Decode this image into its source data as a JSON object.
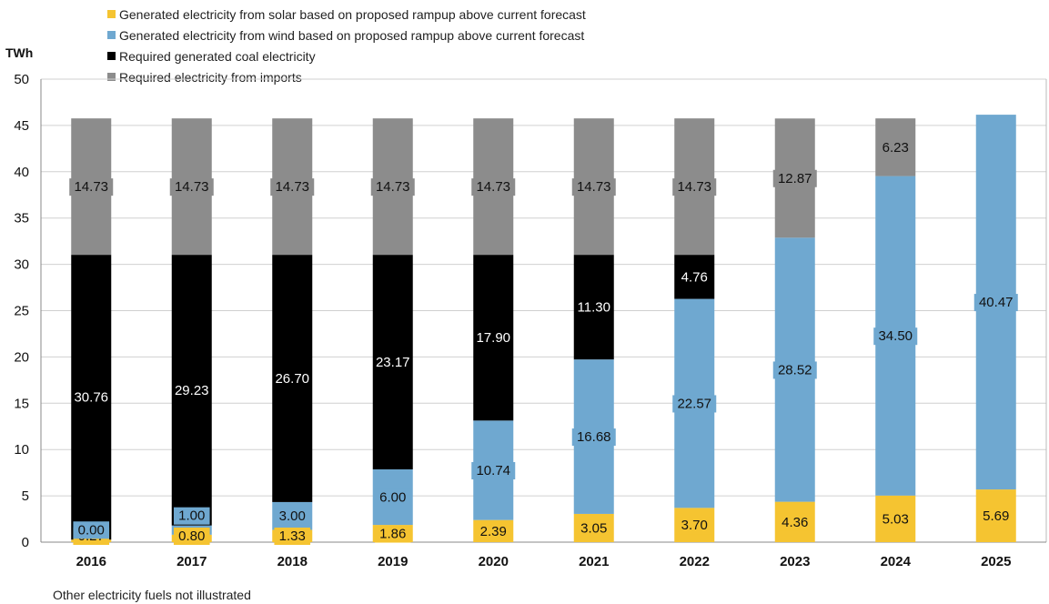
{
  "chart_data": {
    "type": "bar",
    "stacked": true,
    "title": "",
    "ylabel": "TWh",
    "xlabel": "",
    "ylim": [
      0,
      50
    ],
    "yticks": [
      0,
      5,
      10,
      15,
      20,
      25,
      30,
      35,
      40,
      45,
      50
    ],
    "grid": "horizontal",
    "legend_position": "top",
    "categories": [
      "2016",
      "2017",
      "2018",
      "2019",
      "2020",
      "2021",
      "2022",
      "2023",
      "2024",
      "2025"
    ],
    "series": [
      {
        "name": "Generated electricity from solar based on proposed rampup above current forecast",
        "color": "#f5c431",
        "values": [
          0.27,
          0.8,
          1.33,
          1.86,
          2.39,
          3.05,
          3.7,
          4.36,
          5.03,
          5.69
        ]
      },
      {
        "name": "Generated electricity from wind based on proposed rampup above current forecast",
        "color": "#6fa8d0",
        "values": [
          0.0,
          1.0,
          3.0,
          6.0,
          10.74,
          16.68,
          22.57,
          28.52,
          34.5,
          40.47
        ]
      },
      {
        "name": "Required generated coal electricity",
        "color": "#000000",
        "values": [
          30.76,
          29.23,
          26.7,
          23.17,
          17.9,
          11.3,
          4.76,
          0,
          0,
          0
        ]
      },
      {
        "name": "Required electricity from imports",
        "color": "#8c8c8c",
        "values": [
          14.73,
          14.73,
          14.73,
          14.73,
          14.73,
          14.73,
          14.73,
          12.87,
          6.23,
          0
        ]
      }
    ],
    "data_labels": [
      [
        "0.27",
        "0.80",
        "1.33",
        "1.86",
        "2.39",
        "3.05",
        "3.70",
        "4.36",
        "5.03",
        "5.69"
      ],
      [
        "0.00",
        "1.00",
        "3.00",
        "6.00",
        "10.74",
        "16.68",
        "22.57",
        "28.52",
        "34.50",
        "40.47"
      ],
      [
        "30.76",
        "29.23",
        "26.70",
        "23.17",
        "17.90",
        "11.30",
        "4.76",
        "",
        "",
        ""
      ],
      [
        "14.73",
        "14.73",
        "14.73",
        "14.73",
        "14.73",
        "14.73",
        "14.73",
        "12.87",
        "6.23",
        ""
      ]
    ],
    "footnote": "Other electricity fuels not illustrated"
  }
}
